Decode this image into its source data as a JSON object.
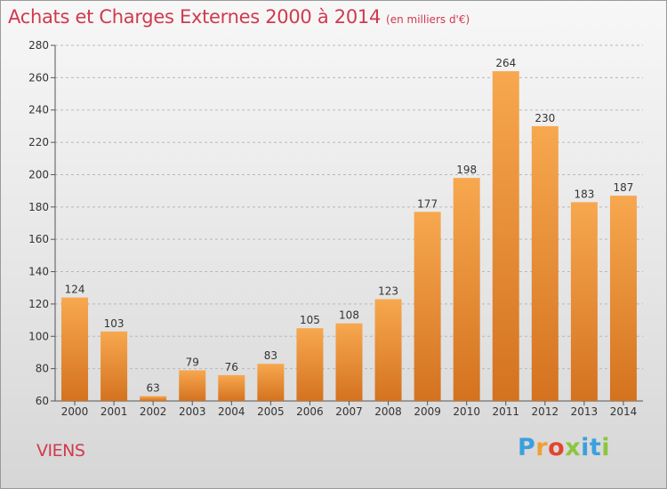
{
  "title": "Achats et Charges Externes 2000 à 2014",
  "subtitle": "(en milliers d'€)",
  "commune": "VIENS",
  "logo": {
    "text": "Proxiti"
  },
  "colors": {
    "title": "#d03a4e",
    "bar_light": "#f6a650",
    "bar_dark": "#d2711e"
  },
  "chart_data": {
    "type": "bar",
    "title": "Achats et Charges Externes 2000 à 2014",
    "subtitle": "(en milliers d'€)",
    "categories": [
      "2000",
      "2001",
      "2002",
      "2003",
      "2004",
      "2005",
      "2006",
      "2007",
      "2008",
      "2009",
      "2010",
      "2011",
      "2012",
      "2013",
      "2014"
    ],
    "values": [
      124,
      103,
      63,
      79,
      76,
      83,
      105,
      108,
      123,
      177,
      198,
      264,
      230,
      183,
      187
    ],
    "ylim": [
      60,
      280
    ],
    "yticks": [
      60,
      80,
      100,
      120,
      140,
      160,
      180,
      200,
      220,
      240,
      260,
      280
    ],
    "grid": true,
    "xlabel": "",
    "ylabel": ""
  }
}
